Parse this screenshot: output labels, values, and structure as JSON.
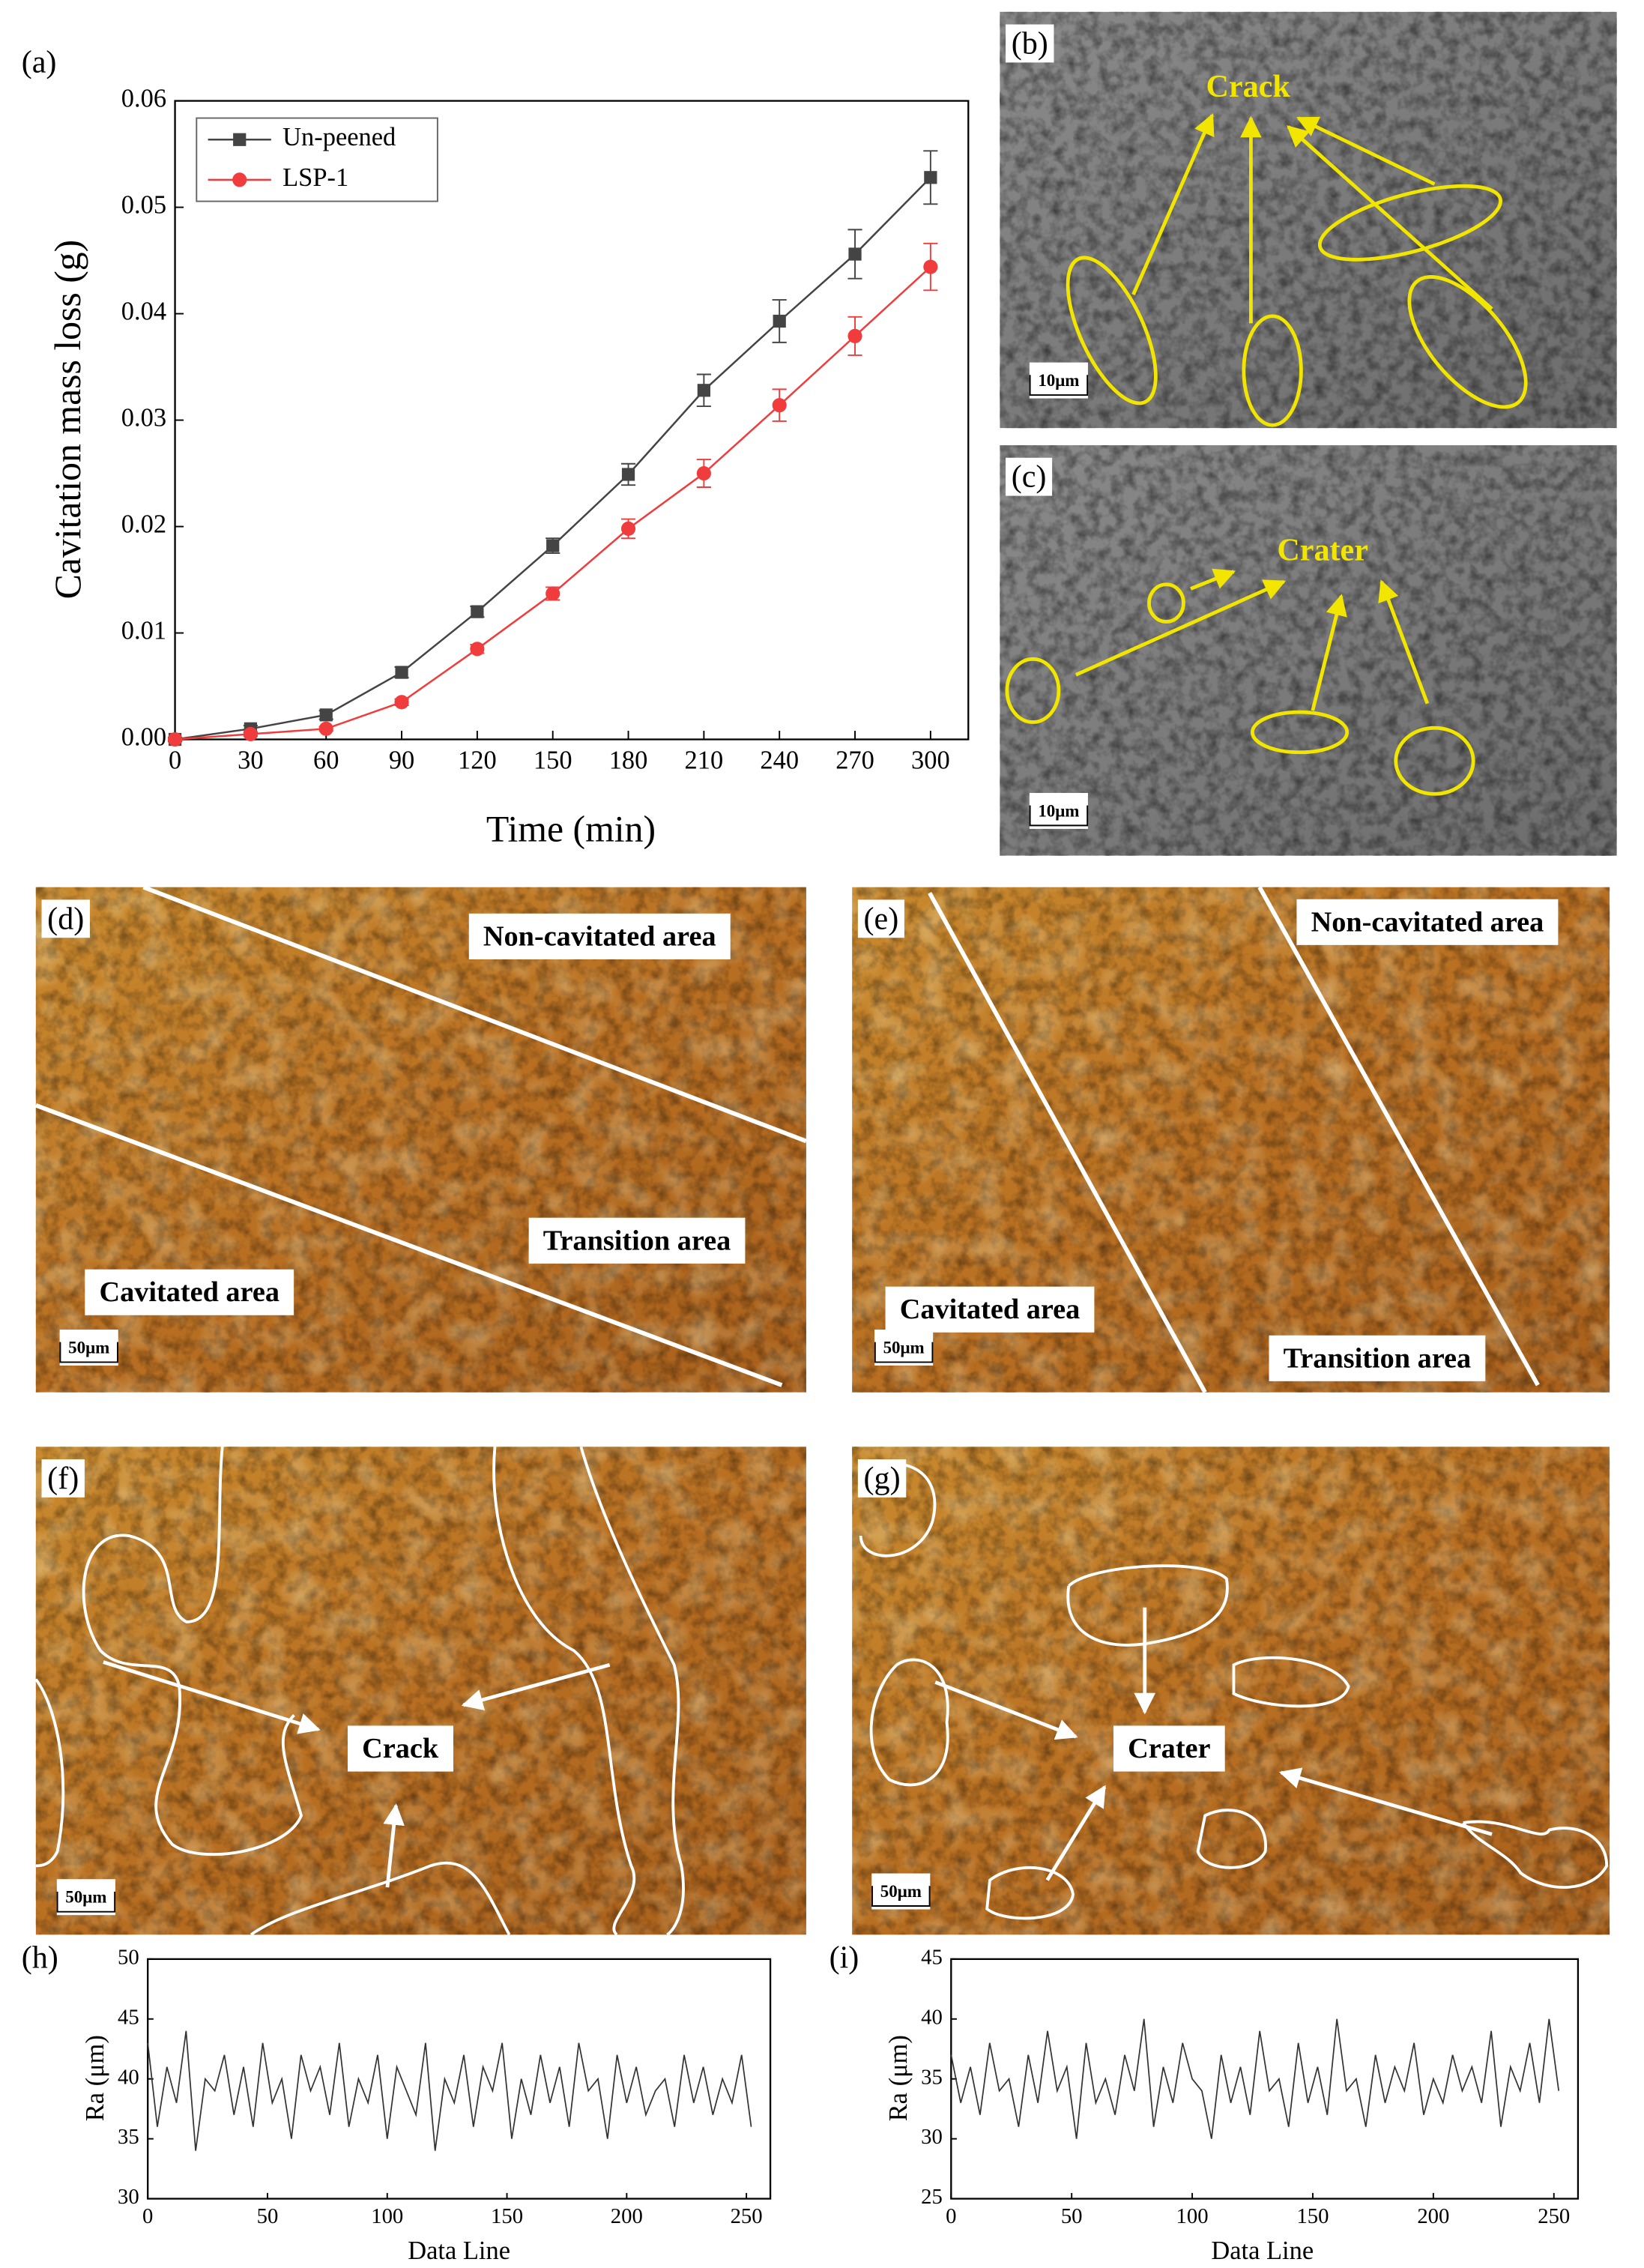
{
  "chart_data": [
    {
      "type": "line",
      "panel_label": "(a)",
      "x_label": "Time (min)",
      "y_label": "Cavitation mass loss (g)",
      "x": [
        0,
        30,
        60,
        90,
        120,
        150,
        180,
        210,
        240,
        270,
        300
      ],
      "xlim": [
        0,
        315
      ],
      "xticks": [
        0,
        30,
        60,
        90,
        120,
        150,
        180,
        210,
        240,
        270,
        300
      ],
      "ylim": [
        0,
        0.06
      ],
      "yticks": [
        {
          "value": 0,
          "label": "0.00"
        },
        0.01,
        0.02,
        0.03,
        0.04,
        0.05,
        0.06
      ],
      "legend": "upper left",
      "series": [
        {
          "name": "Un-peened",
          "color": "#444444",
          "marker": "square",
          "values": [
            0,
            0.001,
            0.0023,
            0.0063,
            0.012,
            0.0182,
            0.0249,
            0.0328,
            0.0393,
            0.0456,
            0.0528
          ],
          "errors": [
            0.0002,
            0.0003,
            0.0004,
            0.0005,
            0.0005,
            0.0007,
            0.001,
            0.0015,
            0.002,
            0.0023,
            0.0025
          ]
        },
        {
          "name": "LSP-1",
          "color": "#f03c3c",
          "marker": "circle",
          "values": [
            0,
            0.0005,
            0.001,
            0.0035,
            0.0085,
            0.0137,
            0.0198,
            0.025,
            0.0314,
            0.0379,
            0.0444
          ],
          "errors": [
            0.0001,
            0.0002,
            0.0002,
            0.0003,
            0.0004,
            0.0006,
            0.0009,
            0.0013,
            0.0015,
            0.0018,
            0.0022
          ]
        }
      ]
    },
    {
      "type": "line",
      "panel_label": "(h)",
      "x_label": "Data Line",
      "y_label": "Ra (μm)",
      "x": [
        0,
        4,
        8,
        12,
        16,
        20,
        24,
        28,
        32,
        36,
        40,
        44,
        48,
        52,
        56,
        60,
        64,
        68,
        72,
        76,
        80,
        84,
        88,
        92,
        96,
        100,
        104,
        108,
        112,
        116,
        120,
        124,
        128,
        132,
        136,
        140,
        144,
        148,
        152,
        156,
        160,
        164,
        168,
        172,
        176,
        180,
        184,
        188,
        192,
        196,
        200,
        204,
        208,
        212,
        216,
        220,
        224,
        228,
        232,
        236,
        240,
        244,
        248,
        252
      ],
      "xlim": [
        0,
        260
      ],
      "xticks": [
        0,
        50,
        100,
        150,
        200,
        250
      ],
      "ylim": [
        30,
        50
      ],
      "yticks": [
        30,
        35,
        40,
        45,
        50
      ],
      "series": [
        {
          "color": "#333333",
          "values": [
            43,
            36,
            41,
            38,
            44,
            34,
            40,
            39,
            42,
            37,
            41,
            36,
            43,
            38,
            40,
            35,
            42,
            39,
            41,
            37,
            43,
            36,
            40,
            38,
            42,
            35,
            41,
            39,
            37,
            43,
            34,
            40,
            38,
            42,
            36,
            41,
            39,
            43,
            35,
            40,
            37,
            42,
            38,
            41,
            36,
            43,
            39,
            40,
            35,
            42,
            38,
            41,
            37,
            39,
            40,
            36,
            42,
            38,
            41,
            37,
            40,
            38,
            42,
            36
          ]
        }
      ]
    },
    {
      "type": "line",
      "panel_label": "(i)",
      "x_label": "Data Line",
      "y_label": "Ra (μm)",
      "x": [
        0,
        4,
        8,
        12,
        16,
        20,
        24,
        28,
        32,
        36,
        40,
        44,
        48,
        52,
        56,
        60,
        64,
        68,
        72,
        76,
        80,
        84,
        88,
        92,
        96,
        100,
        104,
        108,
        112,
        116,
        120,
        124,
        128,
        132,
        136,
        140,
        144,
        148,
        152,
        156,
        160,
        164,
        168,
        172,
        176,
        180,
        184,
        188,
        192,
        196,
        200,
        204,
        208,
        212,
        216,
        220,
        224,
        228,
        232,
        236,
        240,
        244,
        248,
        252
      ],
      "xlim": [
        0,
        260
      ],
      "xticks": [
        0,
        50,
        100,
        150,
        200,
        250
      ],
      "ylim": [
        25,
        45
      ],
      "yticks": [
        25,
        30,
        35,
        40,
        45
      ],
      "series": [
        {
          "color": "#333333",
          "values": [
            37,
            33,
            36,
            32,
            38,
            34,
            35,
            31,
            37,
            33,
            39,
            34,
            36,
            30,
            38,
            33,
            35,
            32,
            37,
            34,
            40,
            31,
            36,
            33,
            38,
            35,
            34,
            30,
            37,
            33,
            36,
            32,
            39,
            34,
            35,
            31,
            38,
            33,
            36,
            32,
            40,
            34,
            35,
            31,
            37,
            33,
            36,
            34,
            38,
            32,
            35,
            33,
            37,
            34,
            36,
            33,
            39,
            31,
            36,
            34,
            38,
            33,
            40,
            34
          ]
        }
      ]
    }
  ],
  "images": [
    {
      "label": "(b)",
      "kind": "sem",
      "texts": [
        "Crack"
      ],
      "scale_bar": "10μm"
    },
    {
      "label": "(c)",
      "kind": "sem",
      "texts": [
        "Crater"
      ],
      "scale_bar": "10μm"
    },
    {
      "label": "(d)",
      "kind": "optical",
      "texts": [
        "Non-cavitated area",
        "Transition area",
        "Cavitated area"
      ],
      "scale_bar": "50μm"
    },
    {
      "label": "(e)",
      "kind": "optical",
      "texts": [
        "Non-cavitated area",
        "Cavitated area",
        "Transition area"
      ],
      "scale_bar": "50μm"
    },
    {
      "label": "(f)",
      "kind": "optical",
      "texts": [
        "Crack"
      ],
      "scale_bar": "50μm"
    },
    {
      "label": "(g)",
      "kind": "optical",
      "texts": [
        "Crater"
      ],
      "scale_bar": "50μm"
    }
  ]
}
